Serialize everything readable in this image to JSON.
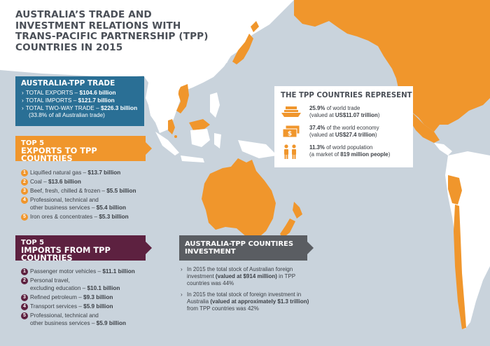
{
  "title": {
    "line1": "Australia’s trade and",
    "line2": "investment relations with",
    "line3": "Trans-Pacific Partnership (TPP)",
    "line4": "countries in 2015"
  },
  "trade": {
    "heading": "AUSTRALIA-TPP TRADE",
    "arrow": "›",
    "exports_label": "TOTAL EXPORTS – ",
    "exports_value": "$104.6 billion",
    "imports_label": "TOTAL IMPORTS – ",
    "imports_value": "$121.7 billion",
    "twoway_label": "TOTAL TWO-WAY TRADE – ",
    "twoway_value": "$226.3 billion",
    "twoway_note": "(33.8% of all Australian trade)"
  },
  "exports": {
    "heading_top": "Top 5",
    "heading_main": "Exports to TPP countries",
    "items": [
      {
        "num": "1",
        "label": "Liquified natural gas – ",
        "value": "$13.7 billion"
      },
      {
        "num": "2",
        "label": "Coal – ",
        "value": "$13.6 billion"
      },
      {
        "num": "3",
        "label": "Beef, fresh, chilled & frozen – ",
        "value": "$5.5 billion"
      },
      {
        "num": "4",
        "label": "Professional, technical and",
        "label2": "other business services – ",
        "value": "$5.4 billion"
      },
      {
        "num": "5",
        "label": "Iron ores & concentrates – ",
        "value": "$5.3 billion"
      }
    ]
  },
  "imports": {
    "heading_top": "Top 5",
    "heading_main": "Imports from TPP countries",
    "items": [
      {
        "num": "1",
        "label": "Passenger motor vehicles – ",
        "value": "$11.1 billion"
      },
      {
        "num": "2",
        "label": "Personal travel,",
        "label2": "excluding education – ",
        "value": "$10.1 billion"
      },
      {
        "num": "3",
        "label": "Refined petroleum – ",
        "value": "$9.3 billion"
      },
      {
        "num": "4",
        "label": "Transport services – ",
        "value": "$5.9 billion"
      },
      {
        "num": "5",
        "label": "Professional, technical and",
        "label2": "other business services – ",
        "value": "$5.9 billion"
      }
    ]
  },
  "represent": {
    "heading": "The TPP countries represent",
    "trade_pct": "25.9%",
    "trade_text": " of world trade",
    "trade_sub1": "(valued at ",
    "trade_sub_value": "US$11.07 trillion",
    "trade_sub2": ")",
    "economy_pct": "37.4%",
    "economy_text": " of the world economy",
    "economy_sub1": "(valued at ",
    "economy_sub_value": "US$27.4 trillion",
    "economy_sub2": ")",
    "pop_pct": "11.3%",
    "pop_text": " of world population",
    "pop_sub1": "(a market of ",
    "pop_sub_value": "819 million people",
    "pop_sub2": ")",
    "icons": [
      "ship-icon",
      "money-icon",
      "people-icon"
    ]
  },
  "investment": {
    "heading_line1": "Australia-TPP countires",
    "heading_line2": "Investment",
    "arrow": "›",
    "p1_a": "In 2015 the total stock of Australian foreign",
    "p1_b": "investment ",
    "p1_b_bold": "(valued at $914 million)",
    "p1_b_end": " in TPP",
    "p1_c": "countries was 44%",
    "p2_a": "In 2015 the total stock of foreign investment in",
    "p2_b": "Australia ",
    "p2_b_bold": "(valued at approximately $1.3 trillion)",
    "p2_c": "from TPP countries was 42%"
  },
  "colors": {
    "ocean": "#c9d3dc",
    "land": "#ffffff",
    "tpp_land": "#f0962c",
    "blue_box": "#2a6f95",
    "orange": "#f0962c",
    "purple": "#5d2140",
    "grey_box": "#5a5d62",
    "text": "#3c4046"
  }
}
